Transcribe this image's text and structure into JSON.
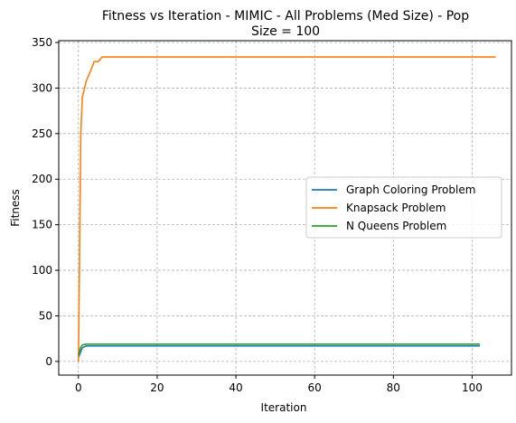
{
  "chart_data": {
    "type": "line",
    "title_line1": "Fitness vs Iteration - MIMIC - All Problems (Med Size) - Pop",
    "title_line2": "Size = 100",
    "xlabel": "Iteration",
    "ylabel": "Fitness",
    "xlim": [
      -5,
      110
    ],
    "ylim": [
      -15,
      352
    ],
    "xticks": [
      0,
      20,
      40,
      60,
      80,
      100
    ],
    "yticks": [
      0,
      50,
      100,
      150,
      200,
      250,
      300,
      350
    ],
    "grid": true,
    "grid_style": "dashed",
    "legend_position": "center-right",
    "series": [
      {
        "name": "Graph Coloring Problem",
        "color": "#1f77b4",
        "points": [
          [
            0,
            4
          ],
          [
            0.5,
            10
          ],
          [
            1,
            15
          ],
          [
            2,
            17
          ],
          [
            3,
            17
          ],
          [
            102,
            17
          ]
        ]
      },
      {
        "name": "Knapsack Problem",
        "color": "#ff7f0e",
        "points": [
          [
            0,
            0
          ],
          [
            0.3,
            120
          ],
          [
            0.6,
            250
          ],
          [
            1,
            290
          ],
          [
            2,
            308
          ],
          [
            3,
            318
          ],
          [
            4,
            329
          ],
          [
            5,
            329
          ],
          [
            6,
            334
          ],
          [
            106,
            334
          ]
        ]
      },
      {
        "name": "N Queens Problem",
        "color": "#2ca02c",
        "points": [
          [
            0,
            7
          ],
          [
            0.5,
            15
          ],
          [
            1,
            18
          ],
          [
            2,
            19
          ],
          [
            102,
            19
          ]
        ]
      }
    ]
  }
}
